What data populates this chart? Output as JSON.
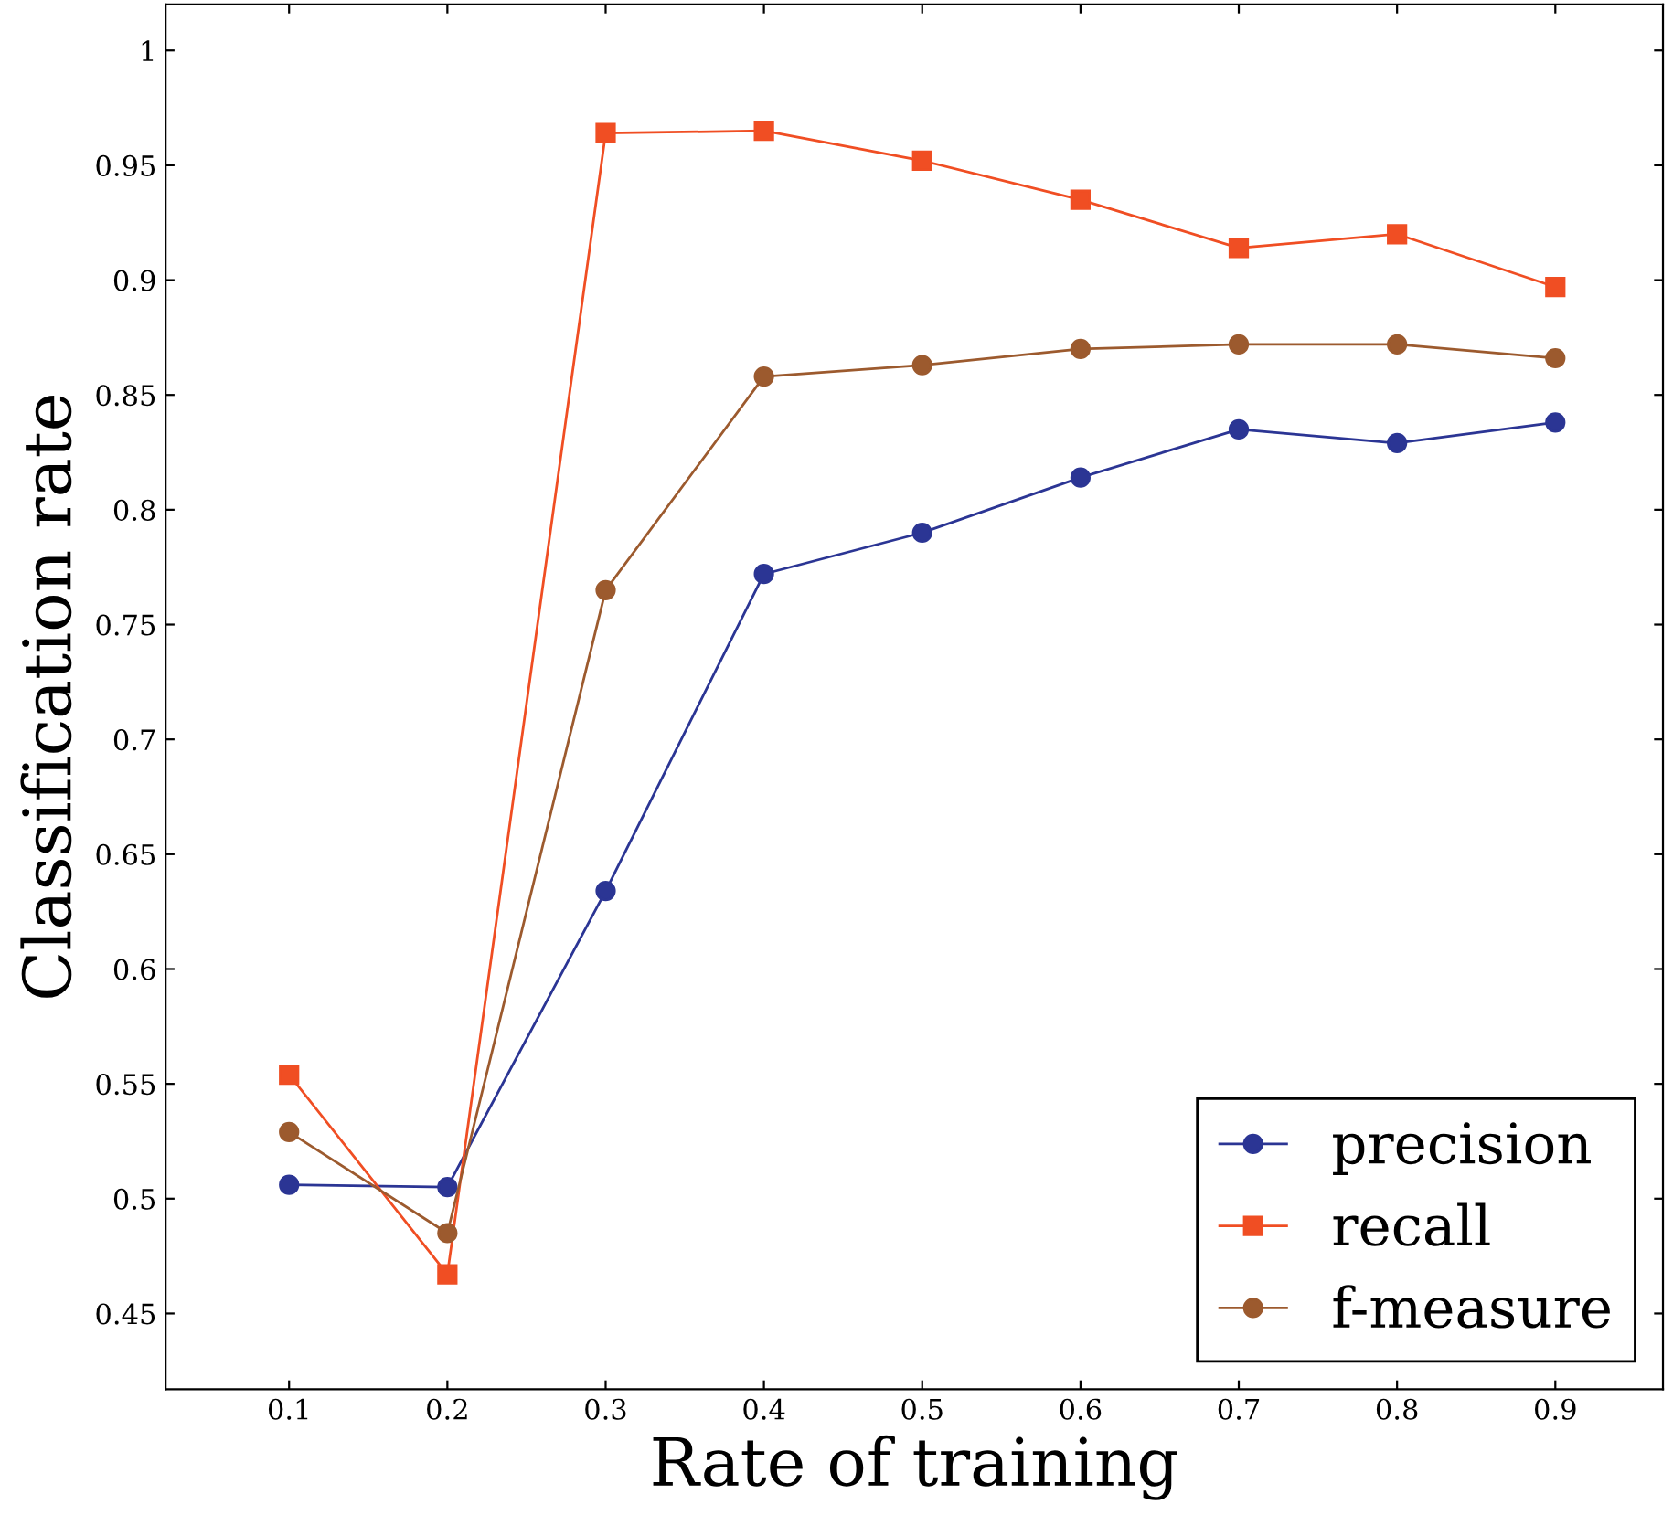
{
  "chart_data": {
    "type": "line",
    "xlabel": "Rate of training",
    "ylabel": "Classification rate",
    "x": [
      0.1,
      0.2,
      0.3,
      0.4,
      0.5,
      0.6,
      0.7,
      0.8,
      0.9
    ],
    "series": [
      {
        "name": "precision",
        "color": "#2b3594",
        "marker": "circle",
        "values": [
          0.506,
          0.505,
          0.634,
          0.772,
          0.79,
          0.814,
          0.835,
          0.829,
          0.838
        ]
      },
      {
        "name": "recall",
        "color": "#f04e23",
        "marker": "square",
        "values": [
          0.554,
          0.467,
          0.964,
          0.965,
          0.952,
          0.935,
          0.914,
          0.92,
          0.897
        ]
      },
      {
        "name": "f-measure",
        "color": "#9c5a2e",
        "marker": "circle",
        "values": [
          0.529,
          0.485,
          0.765,
          0.858,
          0.863,
          0.87,
          0.872,
          0.872,
          0.866
        ]
      }
    ],
    "xlim": [
      0.022,
      0.968
    ],
    "ylim": [
      0.417,
      1.02
    ],
    "xticks": [
      0.1,
      0.2,
      0.3,
      0.4,
      0.5,
      0.6,
      0.7,
      0.8,
      0.9
    ],
    "yticks": [
      0.45,
      0.5,
      0.55,
      0.6,
      0.65,
      0.7,
      0.75,
      0.8,
      0.85,
      0.9,
      0.95,
      1
    ],
    "grid": false,
    "legend": "bottom right"
  }
}
